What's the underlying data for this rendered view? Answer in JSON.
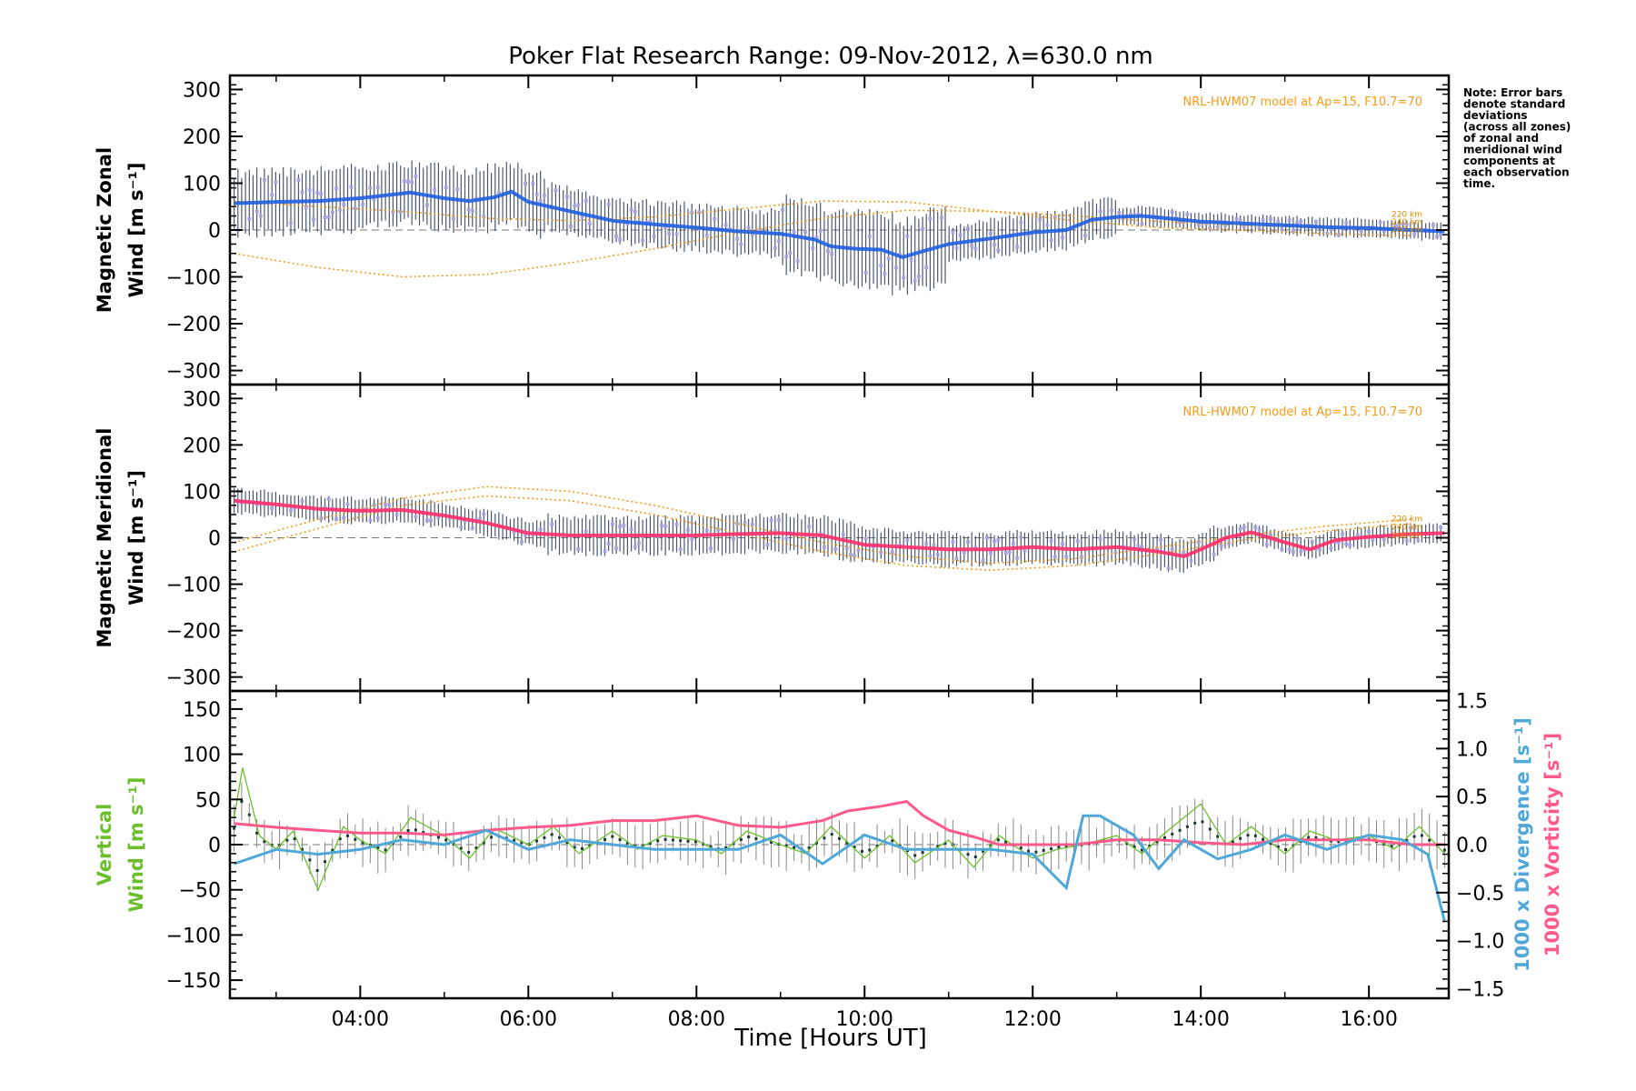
{
  "title": "Poker Flat Research Range: 09-Nov-2012, λ=630.0 nm",
  "xlabel": "Time [Hours UT]",
  "x_ticks": [
    "04:00",
    "06:00",
    "08:00",
    "10:00",
    "12:00",
    "14:00",
    "16:00"
  ],
  "note": [
    "Note: Error bars",
    "denote standard",
    "deviations",
    "(across all zones)",
    "of zonal and",
    "meridional wind",
    "components at",
    "each observation",
    "time."
  ],
  "model_label": "NRL-HWM07 model at Ap=15, F10.7=70",
  "altitude_labels": [
    "220 km",
    "240 km",
    "260 km"
  ],
  "colors": {
    "zonal_mean": "#1f5fe0",
    "meridional_mean": "#ff2d6a",
    "vertical": "#6abf2a",
    "divergence": "#4fa8d8",
    "vorticity": "#ff5a8a",
    "model": "#f39c1a",
    "scatter": "#a9a3e0",
    "error_bar": "#2a3b55"
  },
  "chart_data": [
    {
      "type": "line",
      "panel": "zonal",
      "ylabel_line1": "Magnetic Zonal",
      "ylabel_line2": "Wind [m s⁻¹]",
      "y_ticks": [
        "300",
        "200",
        "100",
        "0",
        "−100",
        "−200",
        "−300"
      ],
      "xlim": [
        2.45,
        16.95
      ],
      "ylim": [
        -330,
        330
      ],
      "series": [
        {
          "name": "",
          "role": "mean",
          "x": [
            2.5,
            3.0,
            3.5,
            4.0,
            4.3,
            4.6,
            5.0,
            5.3,
            5.6,
            5.8,
            6.0,
            6.5,
            7.0,
            7.5,
            8.0,
            8.5,
            9.0,
            9.4,
            9.6,
            9.9,
            10.2,
            10.45,
            10.7,
            11.0,
            11.5,
            12.0,
            12.4,
            12.7,
            13.0,
            13.3,
            13.6,
            14.0,
            14.5,
            15.0,
            15.5,
            16.0,
            16.5,
            16.9
          ],
          "y": [
            57,
            60,
            62,
            68,
            74,
            80,
            68,
            62,
            70,
            82,
            60,
            40,
            20,
            12,
            5,
            -3,
            -8,
            -20,
            -35,
            -40,
            -42,
            -58,
            -45,
            -30,
            -18,
            -5,
            0,
            22,
            28,
            30,
            25,
            18,
            14,
            10,
            6,
            4,
            0,
            -3
          ]
        },
        {
          "name": "",
          "role": "model",
          "x": [
            2.5,
            3.5,
            4.5,
            5.5,
            6.5,
            7.5,
            8.5,
            9.5,
            10.5,
            11.5,
            12.5,
            13.5,
            14.5,
            15.5,
            16.5
          ],
          "y": [
            62,
            50,
            40,
            25,
            20,
            28,
            45,
            62,
            60,
            40,
            20,
            5,
            0,
            -8,
            -12
          ]
        },
        {
          "name": "",
          "role": "model",
          "x": [
            2.5,
            3.5,
            4.5,
            5.5,
            6.5,
            7.5,
            8.5,
            9.5,
            10.5,
            11.5,
            12.5,
            13.5,
            14.5,
            15.5,
            16.5
          ],
          "y": [
            -50,
            -80,
            -100,
            -95,
            -70,
            -40,
            -5,
            25,
            42,
            40,
            30,
            18,
            10,
            5,
            2
          ]
        }
      ]
    },
    {
      "type": "line",
      "panel": "meridional",
      "ylabel_line1": "Magnetic Meridional",
      "ylabel_line2": "Wind [m s⁻¹]",
      "y_ticks": [
        "300",
        "200",
        "100",
        "0",
        "−100",
        "−200",
        "−300"
      ],
      "xlim": [
        2.45,
        16.95
      ],
      "ylim": [
        -330,
        330
      ],
      "series": [
        {
          "name": "",
          "role": "mean",
          "x": [
            2.5,
            3.0,
            3.5,
            4.0,
            4.5,
            5.0,
            5.5,
            6.0,
            6.5,
            7.0,
            7.5,
            8.0,
            8.5,
            9.0,
            9.5,
            10.0,
            10.5,
            11.0,
            11.5,
            12.0,
            12.5,
            13.0,
            13.5,
            13.8,
            14.0,
            14.3,
            14.6,
            15.0,
            15.3,
            15.6,
            16.0,
            16.5,
            16.9
          ],
          "y": [
            80,
            72,
            62,
            58,
            60,
            48,
            32,
            10,
            5,
            5,
            5,
            5,
            8,
            10,
            5,
            -15,
            -20,
            -25,
            -25,
            -20,
            -25,
            -20,
            -30,
            -40,
            -25,
            0,
            12,
            -10,
            -25,
            -5,
            2,
            8,
            10
          ]
        },
        {
          "name": "",
          "role": "model",
          "x": [
            2.5,
            3.5,
            4.5,
            5.5,
            6.5,
            7.5,
            8.5,
            9.5,
            10.5,
            11.5,
            12.5,
            13.5,
            14.5,
            15.5,
            16.5
          ],
          "y": [
            -10,
            40,
            85,
            110,
            100,
            70,
            30,
            -10,
            -40,
            -55,
            -45,
            -20,
            5,
            25,
            40
          ]
        },
        {
          "name": "",
          "role": "model",
          "x": [
            2.5,
            3.5,
            4.5,
            5.5,
            6.5,
            7.5,
            8.5,
            9.5,
            10.5,
            11.5,
            12.5,
            13.5,
            14.5,
            15.5,
            16.5
          ],
          "y": [
            -30,
            20,
            70,
            90,
            80,
            50,
            10,
            -30,
            -60,
            -70,
            -60,
            -35,
            -5,
            15,
            30
          ]
        }
      ]
    },
    {
      "type": "line",
      "panel": "vertical",
      "ylabel_line1": "Vertical",
      "ylabel_line2": "Wind [m s⁻¹]",
      "y2label_div": "1000 x Divergence [s⁻¹]",
      "y2label_vort": "1000 x Vorticity [s⁻¹]",
      "y_ticks": [
        "150",
        "100",
        "50",
        "0",
        "−50",
        "−100",
        "−150"
      ],
      "y2_ticks": [
        "1.5",
        "1.0",
        "0.5",
        "0.0",
        "−0.5",
        "−1.0",
        "−1.5"
      ],
      "xlim": [
        2.45,
        16.95
      ],
      "ylim": [
        -170,
        170
      ],
      "y2lim": [
        -1.6,
        1.6
      ],
      "series": [
        {
          "name": "",
          "role": "vertical",
          "x": [
            2.5,
            2.6,
            2.8,
            3.0,
            3.2,
            3.5,
            3.8,
            4.0,
            4.3,
            4.6,
            5.0,
            5.3,
            5.6,
            6.0,
            6.3,
            6.6,
            7.0,
            7.3,
            7.6,
            8.0,
            8.3,
            8.6,
            9.0,
            9.3,
            9.6,
            10.0,
            10.3,
            10.6,
            11.0,
            11.3,
            11.6,
            12.0,
            12.3,
            12.6,
            13.0,
            13.3,
            13.6,
            14.0,
            14.3,
            14.6,
            15.0,
            15.3,
            15.6,
            16.0,
            16.3,
            16.6,
            16.9
          ],
          "y": [
            30,
            85,
            10,
            -5,
            15,
            -50,
            20,
            5,
            -10,
            30,
            10,
            -15,
            18,
            0,
            20,
            -10,
            15,
            -5,
            10,
            5,
            -10,
            15,
            0,
            -10,
            20,
            -15,
            10,
            -20,
            5,
            -25,
            10,
            -15,
            -5,
            0,
            10,
            -10,
            15,
            45,
            0,
            20,
            -10,
            15,
            5,
            10,
            -5,
            20,
            -10
          ]
        },
        {
          "name": "",
          "role": "divergence",
          "x": [
            2.5,
            3.0,
            3.5,
            4.0,
            4.5,
            5.0,
            5.5,
            6.0,
            6.5,
            7.0,
            7.5,
            8.0,
            8.5,
            9.0,
            9.5,
            10.0,
            10.5,
            11.0,
            11.5,
            12.0,
            12.4,
            12.6,
            12.8,
            13.2,
            13.5,
            13.8,
            14.2,
            14.6,
            15.0,
            15.5,
            16.0,
            16.4,
            16.7,
            16.9
          ],
          "y": [
            -0.2,
            -0.05,
            -0.1,
            -0.05,
            0.05,
            0.0,
            0.15,
            -0.05,
            0.05,
            0.0,
            -0.05,
            -0.05,
            -0.05,
            0.1,
            -0.2,
            0.1,
            -0.05,
            -0.05,
            -0.05,
            -0.1,
            -0.45,
            0.3,
            0.3,
            0.1,
            -0.25,
            0.05,
            -0.15,
            -0.05,
            0.1,
            -0.05,
            0.1,
            0.05,
            -0.1,
            -0.8
          ]
        },
        {
          "name": "",
          "role": "vorticity",
          "x": [
            2.5,
            3.0,
            3.5,
            4.0,
            4.5,
            5.0,
            5.5,
            6.0,
            6.5,
            7.0,
            7.5,
            8.0,
            8.5,
            9.0,
            9.5,
            9.8,
            10.2,
            10.5,
            10.7,
            11.0,
            11.3,
            11.6,
            12.0,
            12.5,
            13.0,
            13.5,
            14.0,
            14.5,
            15.0,
            15.5,
            16.0,
            16.5,
            16.9
          ],
          "y": [
            0.22,
            0.18,
            0.15,
            0.12,
            0.12,
            0.1,
            0.15,
            0.18,
            0.2,
            0.25,
            0.25,
            0.3,
            0.2,
            0.18,
            0.25,
            0.35,
            0.4,
            0.45,
            0.3,
            0.15,
            0.08,
            0.0,
            0.0,
            0.0,
            0.05,
            0.05,
            0.02,
            0.0,
            0.05,
            0.05,
            0.05,
            0.0,
            0.0
          ]
        }
      ]
    }
  ]
}
